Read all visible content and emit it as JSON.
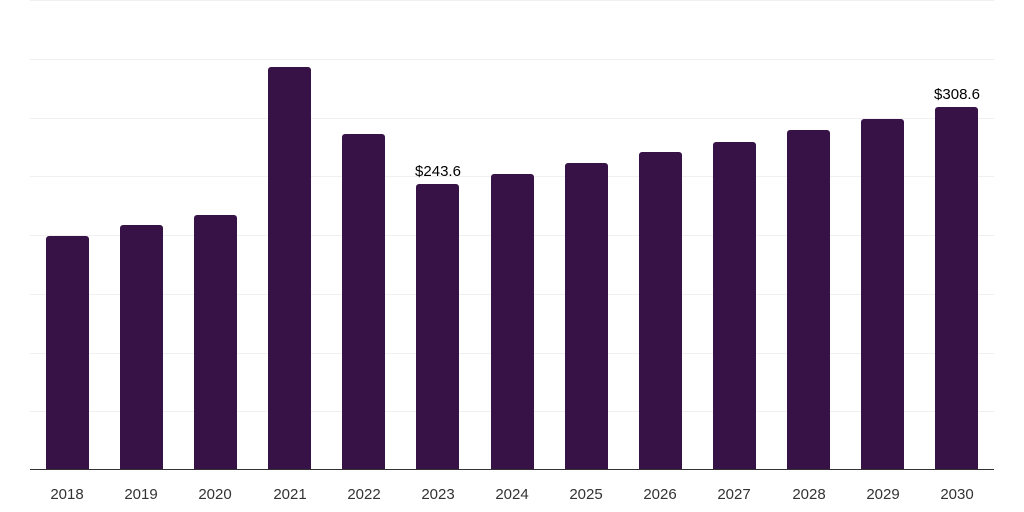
{
  "chart_data": {
    "type": "bar",
    "title": "",
    "xlabel": "",
    "ylabel": "",
    "categories": [
      "2018",
      "2019",
      "2020",
      "2021",
      "2022",
      "2023",
      "2024",
      "2025",
      "2026",
      "2027",
      "2028",
      "2029",
      "2030"
    ],
    "values": [
      199.4,
      208.7,
      217.3,
      343.4,
      286.3,
      243.6,
      252.2,
      261.6,
      270.9,
      279.5,
      289.7,
      299.1,
      308.6
    ],
    "data_labels": {
      "2023": "$243.6",
      "2030": "$308.6"
    },
    "ylim": [
      0,
      400
    ],
    "yticks": [
      0,
      50,
      100,
      150,
      200,
      250,
      300,
      350,
      400
    ],
    "grid": true,
    "legend": null,
    "bar_color": "#371247"
  }
}
